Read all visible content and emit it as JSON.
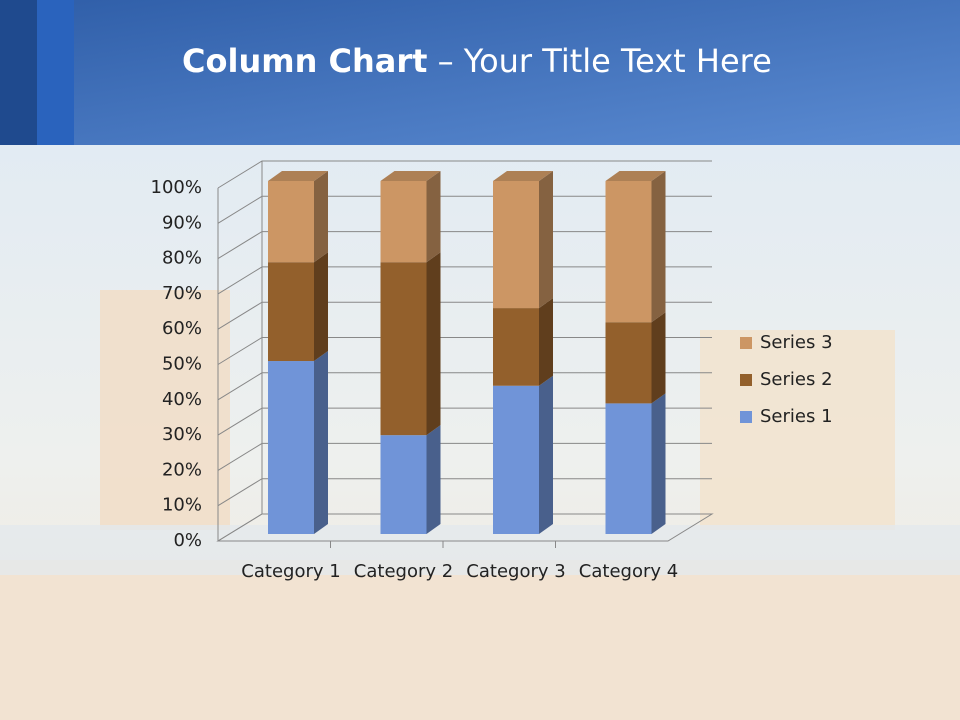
{
  "chart_data": {
    "type": "bar3d_stacked_percent",
    "title_bold": "Column Chart",
    "title": "– Your Title Text Here",
    "categories": [
      "Category 1",
      "Category 2",
      "Category 3",
      "Category 4"
    ],
    "series": [
      {
        "name": "Series 1",
        "color": "#7094d8",
        "values": [
          49,
          28,
          42,
          37
        ]
      },
      {
        "name": "Series 2",
        "color": "#93602c",
        "values": [
          28,
          49,
          22,
          23
        ]
      },
      {
        "name": "Series 3",
        "color": "#cc9664",
        "values": [
          23,
          23,
          36,
          40
        ]
      }
    ],
    "ylim": [
      0,
      100
    ],
    "yticks": [
      {
        "value": 0,
        "label": "0%"
      },
      {
        "value": 10,
        "label": "10%"
      },
      {
        "value": 20,
        "label": "20%"
      },
      {
        "value": 30,
        "label": "30%"
      },
      {
        "value": 40,
        "label": "40%"
      },
      {
        "value": 50,
        "label": "50%"
      },
      {
        "value": 60,
        "label": "60%"
      },
      {
        "value": 70,
        "label": "70%"
      },
      {
        "value": 80,
        "label": "80%"
      },
      {
        "value": 90,
        "label": "90%"
      },
      {
        "value": 100,
        "label": "100%"
      }
    ],
    "grid": true,
    "legend": "right"
  }
}
